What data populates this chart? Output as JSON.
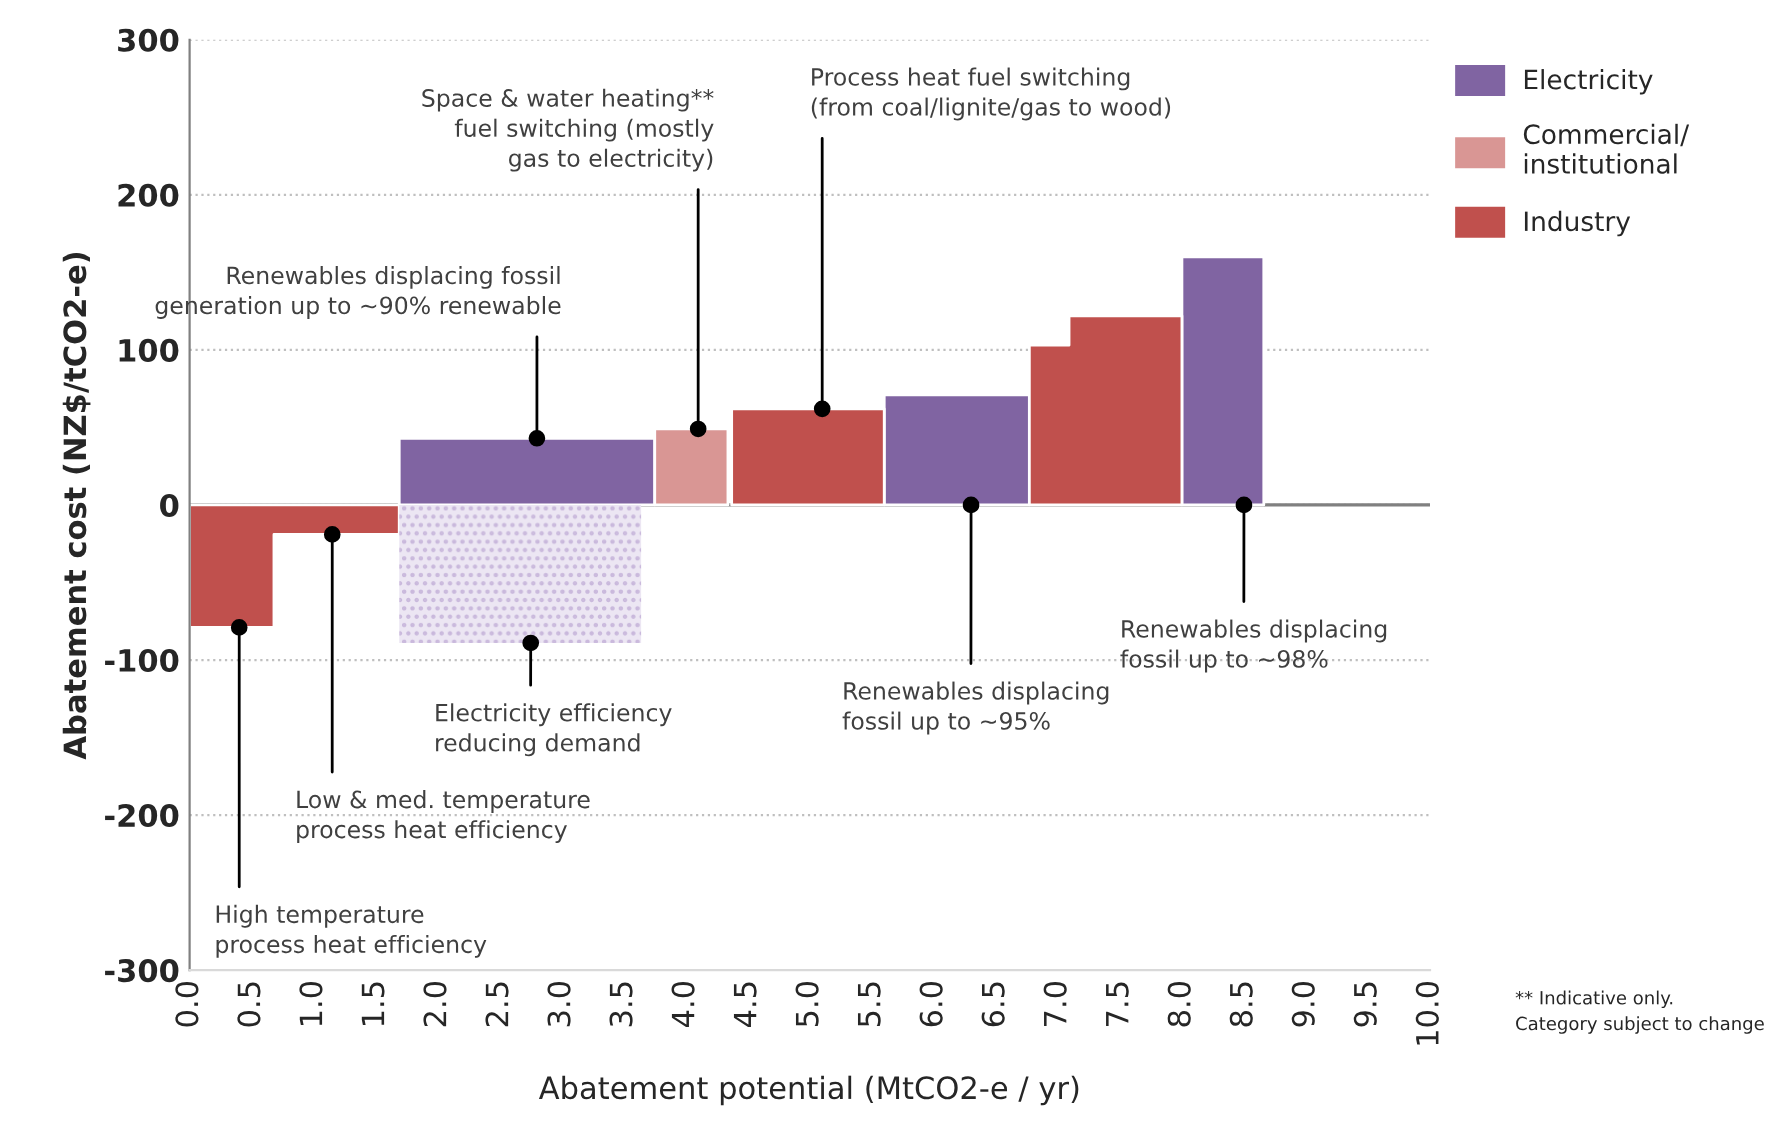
{
  "chart_data": {
    "type": "area",
    "xlabel": "Abatement potential (MtCO2-e / yr)",
    "ylabel": "Abatement cost (NZ$/tCO2-e)",
    "series": [
      {
        "name": "Electricity",
        "color": "#8064a2",
        "x": [
          1.69,
          3.75,
          4.5,
          5.6,
          6.77,
          7.5,
          8.0,
          8.66
        ],
        "values": [
          43,
          43,
          null,
          71,
          71,
          null,
          160,
          160
        ]
      },
      {
        "name": "Commercial/ institutional",
        "color": "#d99694",
        "x": [
          3.75,
          4.34
        ],
        "values": [
          49,
          49
        ]
      },
      {
        "name": "Industry",
        "color": "#c0504d",
        "x": [
          0,
          0.68,
          0.68,
          1.69,
          3.0,
          4.37,
          5.6,
          6.0,
          6.77,
          7.09,
          7.09,
          8.0
        ],
        "values": [
          -79,
          -79,
          -19,
          -19,
          null,
          62,
          62,
          null,
          103,
          103,
          122,
          122
        ]
      },
      {
        "color": "#c9b8dc",
        "line_style": "dotted",
        "x": [
          1.69,
          3.64
        ],
        "values": [
          -89,
          -89
        ]
      }
    ],
    "annotations": [
      {
        "text": "High temperature\nprocess heat efficiency",
        "x": 0.4,
        "y": -79
      },
      {
        "text": "Low & med. temperature\nprocess heat efficiency",
        "x": 1.15,
        "y": -19
      },
      {
        "text": "Electricity efficiency\nreducing demand",
        "x": 2.75,
        "y": -89
      },
      {
        "text": "Renewables displacing fossil\ngeneration up to ~90% renewable",
        "x": 2.8,
        "y": 43
      },
      {
        "text": "Space & water heating**\nfuel switching (mostly\ngas to electricity)",
        "x": 4.1,
        "y": 49
      },
      {
        "text": "Process heat fuel switching\n(from coal/lignite/gas to wood)",
        "x": 5.1,
        "y": 62
      },
      {
        "text": "Renewables displacing\nfossil up to ~95%",
        "x": 6.3,
        "y": 0
      },
      {
        "text": "Renewables displacing\nfossil up to ~98%",
        "x": 8.5,
        "y": 0
      },
      "** Indicative only.\nCategory subject to change"
    ],
    "xlim": [
      0,
      10
    ],
    "xticks": [
      {
        "value": 0,
        "label": "0.0"
      },
      {
        "value": 0.5,
        "label": "0.5"
      },
      {
        "value": 1,
        "label": "1.0"
      },
      {
        "value": 1.5,
        "label": "1.5"
      },
      {
        "value": 2,
        "label": "2.0"
      },
      {
        "value": 2.5,
        "label": "2.5"
      },
      {
        "value": 3,
        "label": "3.0"
      },
      {
        "value": 3.5,
        "label": "3.5"
      },
      {
        "value": 4,
        "label": "4.0"
      },
      {
        "value": 4.5,
        "label": "4.5"
      },
      {
        "value": 5,
        "label": "5.0"
      },
      {
        "value": 5.5,
        "label": "5.5"
      },
      {
        "value": 6,
        "label": "6.0"
      },
      {
        "value": 6.5,
        "label": "6.5"
      },
      {
        "value": 7,
        "label": "7.0"
      },
      {
        "value": 7.5,
        "label": "7.5"
      },
      {
        "value": 8,
        "label": "8.0"
      },
      {
        "value": 8.5,
        "label": "8.5"
      },
      {
        "value": 9,
        "label": "9.0"
      },
      {
        "value": 9.5,
        "label": "9.5"
      },
      {
        "value": 10,
        "label": "10.0"
      }
    ],
    "ylim": [
      -300,
      300
    ],
    "yticks": [
      -300,
      -200,
      -100,
      0,
      100,
      200,
      300
    ],
    "ref_lines": [
      {
        "axis": "y",
        "value": 0,
        "color": "#808080"
      }
    ],
    "grid": "y",
    "legend": "top right"
  }
}
